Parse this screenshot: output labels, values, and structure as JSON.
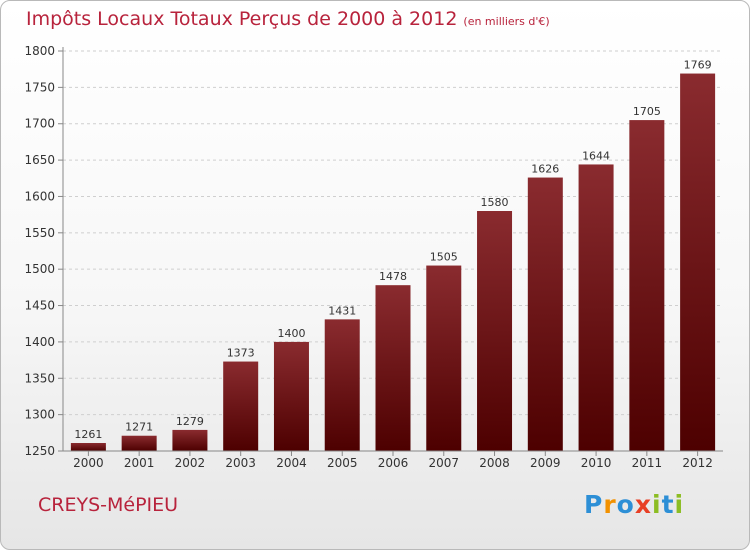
{
  "title": "Impôts Locaux Totaux Perçus de 2000 à 2012",
  "title_unit": "(en milliers d'€)",
  "place": "CREYS-MéPIEU",
  "logo": {
    "text": "Proxiti",
    "letters": [
      {
        "ch": "P",
        "color": "#2d8fd6"
      },
      {
        "ch": "r",
        "color": "#f29100"
      },
      {
        "ch": "o",
        "color": "#2d8fd6"
      },
      {
        "ch": "x",
        "color": "#e83f25"
      },
      {
        "ch": "i",
        "color": "#8cbd23"
      },
      {
        "ch": "t",
        "color": "#2d8fd6"
      },
      {
        "ch": "i",
        "color": "#8cbd23"
      }
    ]
  },
  "colors": {
    "bar_top": "#8a2b2f",
    "bar_bottom": "#4d0000",
    "title": "#b8233c"
  },
  "chart_data": {
    "type": "bar",
    "categories": [
      "2000",
      "2001",
      "2002",
      "2003",
      "2004",
      "2005",
      "2006",
      "2007",
      "2008",
      "2009",
      "2010",
      "2011",
      "2012"
    ],
    "values": [
      1261,
      1271,
      1279,
      1373,
      1400,
      1431,
      1478,
      1505,
      1580,
      1626,
      1644,
      1705,
      1769
    ],
    "ylim": [
      1250,
      1800
    ],
    "yticks": [
      1250,
      1300,
      1350,
      1400,
      1450,
      1500,
      1550,
      1600,
      1650,
      1700,
      1750,
      1800
    ],
    "grid": true,
    "xlabel": "",
    "ylabel": ""
  }
}
